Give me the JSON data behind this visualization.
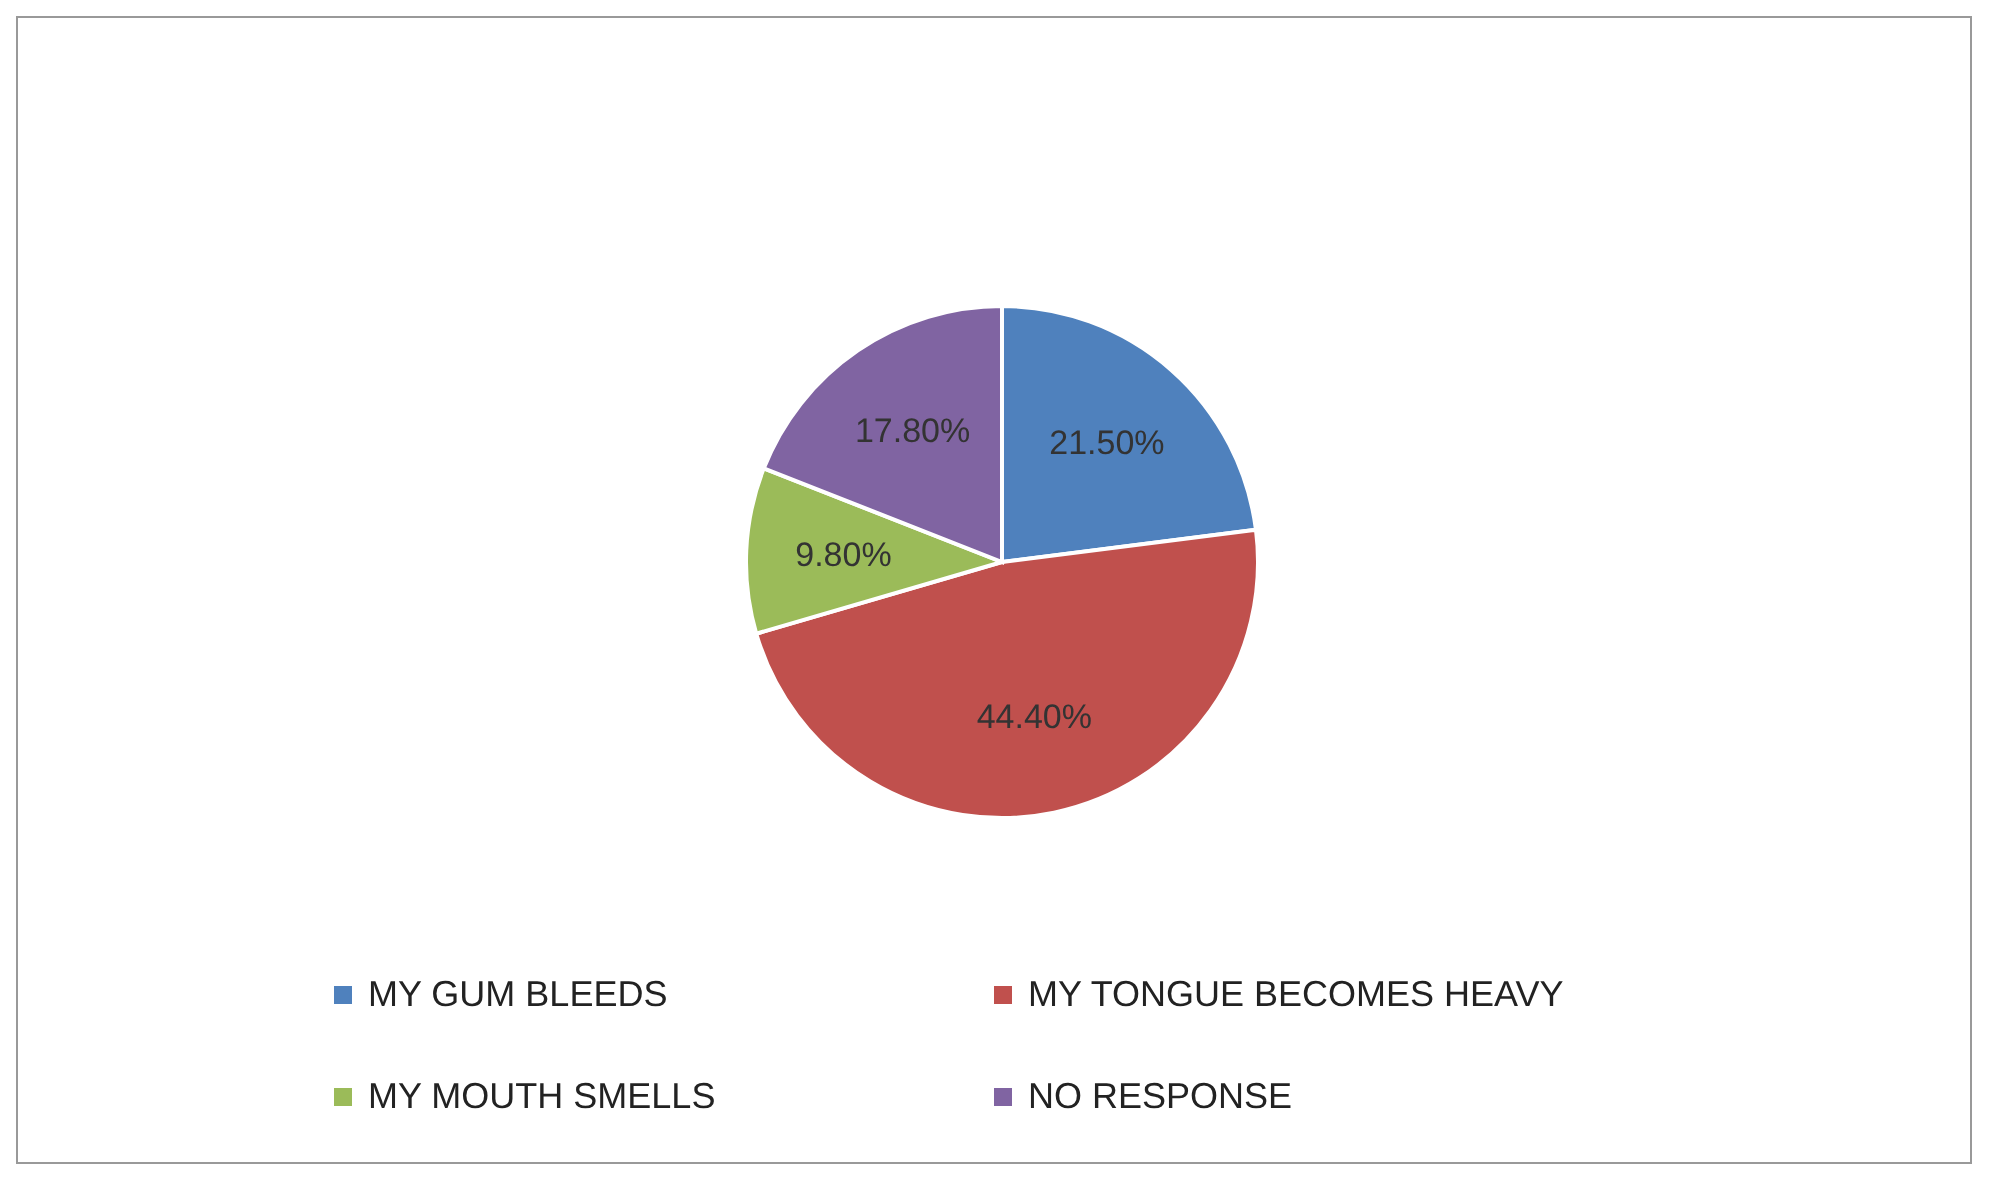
{
  "chart_data": {
    "type": "pie",
    "categories": [
      "MY GUM BLEEDS",
      "MY TONGUE BECOMES HEAVY",
      "MY MOUTH SMELLS",
      "NO RESPONSE"
    ],
    "values": [
      21.5,
      44.4,
      9.8,
      17.8
    ],
    "value_labels": [
      "21.50%",
      "44.40%",
      "9.80%",
      "17.80%"
    ],
    "colors": [
      "#4f81bd",
      "#c0504d",
      "#9bbb59",
      "#8064a2"
    ],
    "legend": "bottom"
  }
}
